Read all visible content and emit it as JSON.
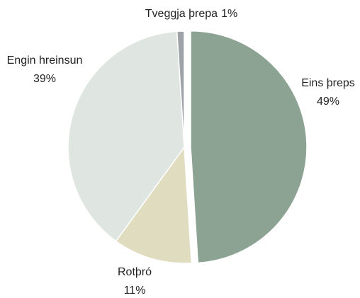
{
  "chart_data": {
    "type": "pie",
    "categories": [
      "Eins þreps",
      "Rotþró",
      "Engin hreinsun",
      "Tveggja þrepa"
    ],
    "values": [
      49,
      11,
      39,
      1
    ],
    "value_labels": [
      "49%",
      "11%",
      "39%",
      "1%"
    ],
    "colors": [
      "#8ca394",
      "#e0dcbf",
      "#dfe5e1",
      "#9ea3a8"
    ],
    "explode": [
      true,
      false,
      false,
      false
    ]
  }
}
